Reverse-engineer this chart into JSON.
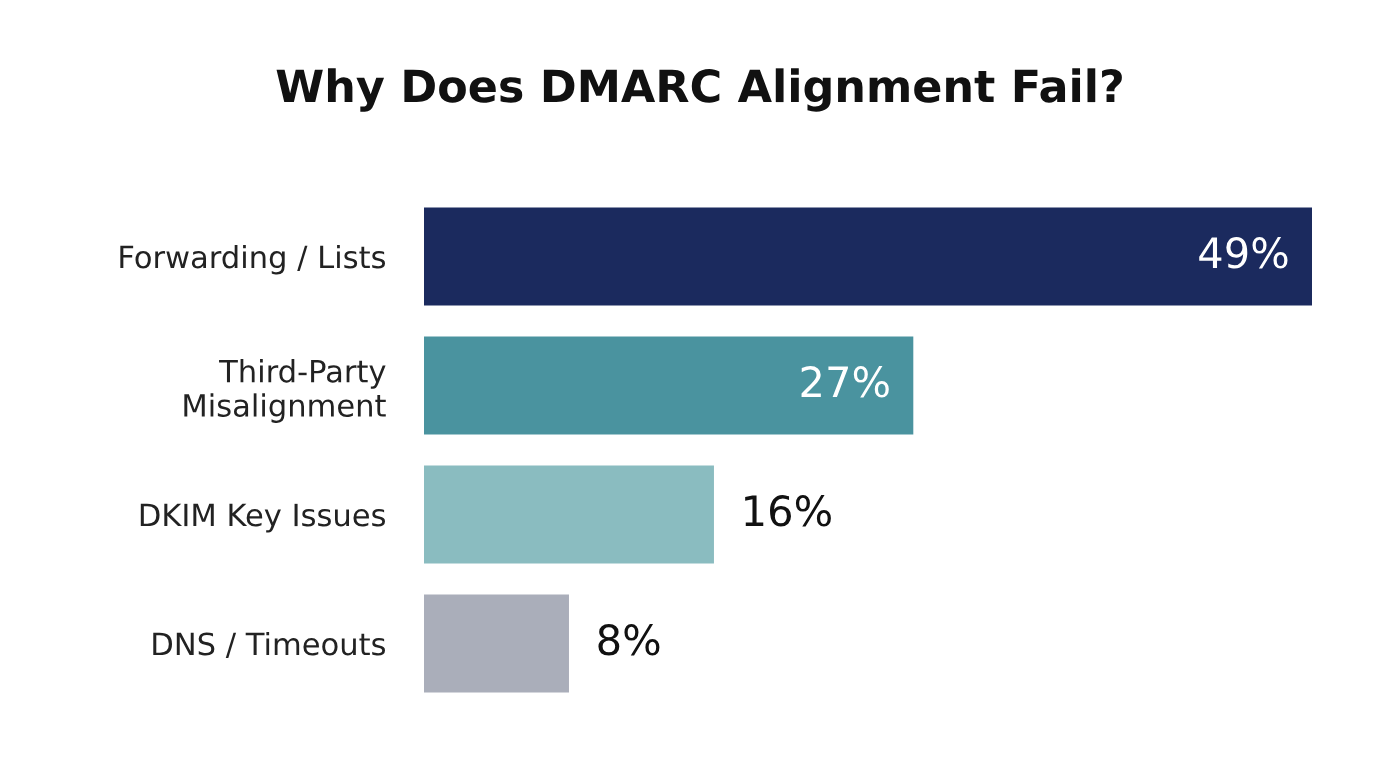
{
  "chart_data": {
    "type": "bar",
    "orientation": "horizontal",
    "title": "Why Does DMARC Alignment Fail?",
    "categories": [
      "Forwarding / Lists",
      "Third-Party\nMisalignment",
      "DKIM Key Issues",
      "DNS / Timeouts"
    ],
    "values": [
      49,
      27,
      16,
      8
    ],
    "colors": [
      "#1b2a5e",
      "#4a939f",
      "#8abcc0",
      "#aaaeba"
    ],
    "value_labels": [
      "49%",
      "27%",
      "16%",
      "8%"
    ],
    "grid": false,
    "legend": false,
    "tick_labels": "y"
  }
}
